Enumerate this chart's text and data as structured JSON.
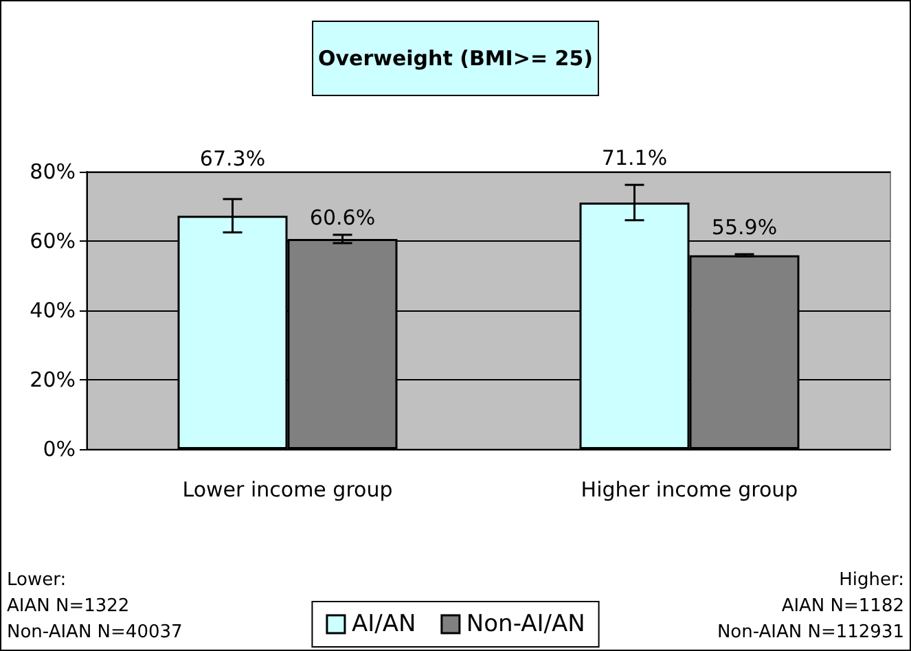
{
  "chart_data": {
    "type": "bar",
    "title": "Overweight (BMI>= 25)",
    "categories": [
      "Lower income group",
      "Higher income group"
    ],
    "series": [
      {
        "name": "AI/AN",
        "color": "#ccffff",
        "values": [
          67.3,
          71.1
        ],
        "errors": [
          4.8,
          5.1
        ],
        "value_labels": [
          "67.3%",
          "71.1%"
        ]
      },
      {
        "name": "Non-AI/AN",
        "color": "#808080",
        "values": [
          60.6,
          55.9
        ],
        "errors": [
          1.2,
          0.3
        ],
        "value_labels": [
          "60.6%",
          "55.9%"
        ]
      }
    ],
    "ylim": [
      0,
      80
    ],
    "yticks": [
      {
        "value": 0,
        "label": "0%"
      },
      {
        "value": 20,
        "label": "20%"
      },
      {
        "value": 40,
        "label": "40%"
      },
      {
        "value": 60,
        "label": "60%"
      },
      {
        "value": 80,
        "label": "80%"
      }
    ],
    "grid": "y",
    "legend": "bottom",
    "annotations": [
      "Lower:\nAIAN N=1322\nNon-AIAN N=40037",
      "Higher:\nAIAN N=1182\nNon-AIAN N=112931"
    ]
  }
}
